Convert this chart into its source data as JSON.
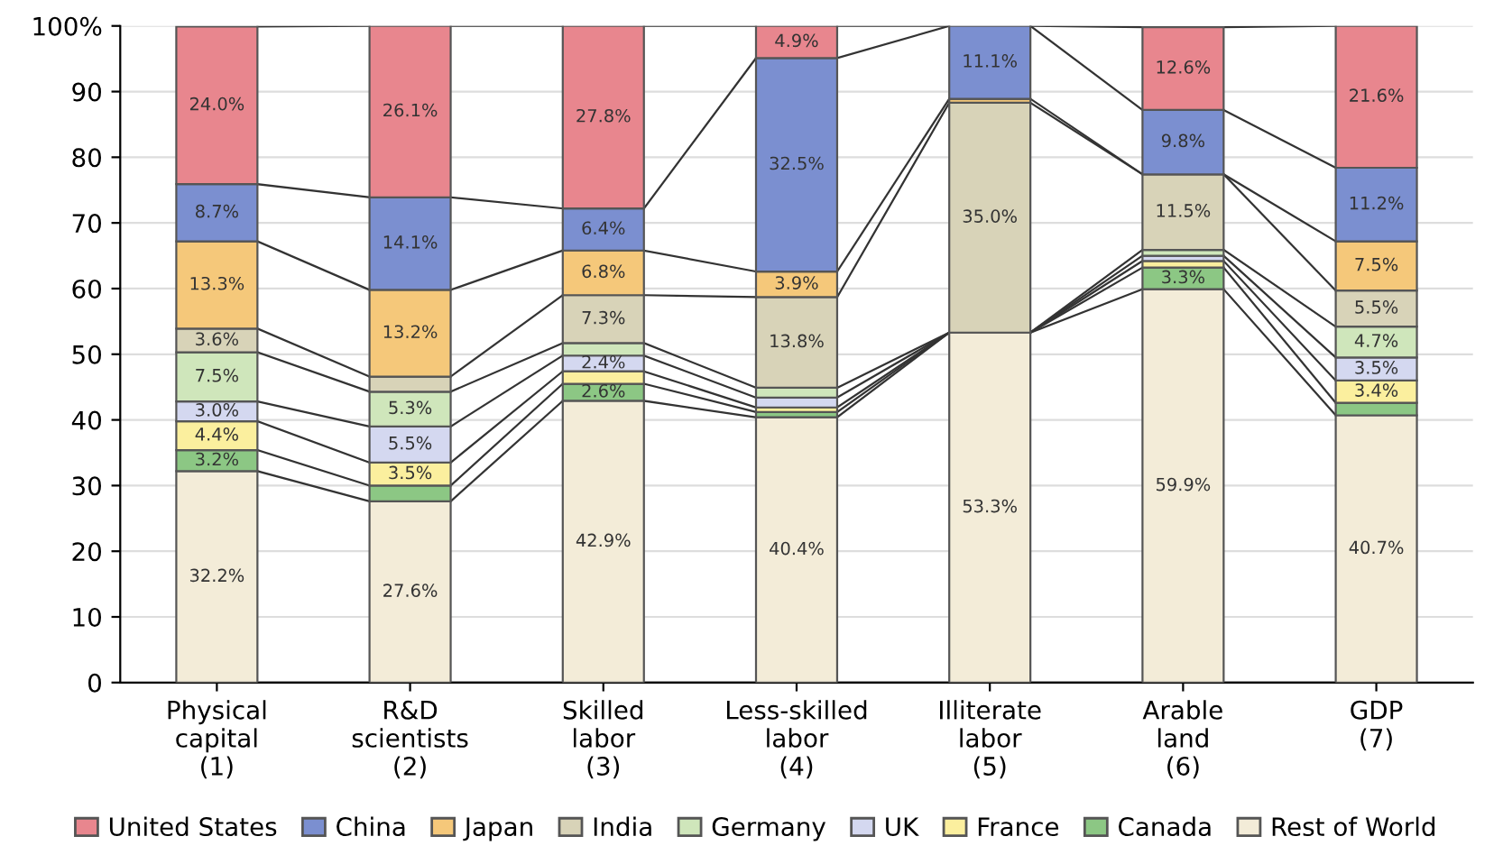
{
  "chart_data": {
    "type": "bar",
    "stacked": true,
    "categories": [
      "Physical\ncapital\n(1)",
      "R&D\nscientists\n(2)",
      "Skilled\nlabor\n(3)",
      "Less-skilled\nlabor\n(4)",
      "Illiterate\nlabor\n(5)",
      "Arable\nland\n(6)",
      "GDP\n(7)"
    ],
    "series": [
      {
        "name": "Rest of World",
        "color": "#f3ecd8",
        "values": [
          32.2,
          27.6,
          42.9,
          40.4,
          53.3,
          59.9,
          40.7
        ],
        "value_labels": [
          "32.2%",
          "27.6%",
          "42.9%",
          "40.4%",
          "53.3%",
          "59.9%",
          "40.7%"
        ]
      },
      {
        "name": "Canada",
        "color": "#8cc784",
        "values": [
          3.2,
          2.4,
          2.6,
          0.8,
          0,
          3.3,
          1.9
        ],
        "value_labels": [
          "3.2%",
          null,
          "2.6%",
          null,
          null,
          "3.3%",
          null
        ]
      },
      {
        "name": "France",
        "color": "#fbef9e",
        "values": [
          4.4,
          3.5,
          1.9,
          0.7,
          0,
          1.0,
          3.4
        ],
        "value_labels": [
          "4.4%",
          "3.5%",
          null,
          null,
          null,
          null,
          "3.4%"
        ]
      },
      {
        "name": "UK",
        "color": "#d4d8f0",
        "values": [
          3.0,
          5.5,
          2.4,
          1.5,
          0,
          0.8,
          3.5
        ],
        "value_labels": [
          "3.0%",
          "5.5%",
          "2.4%",
          null,
          null,
          null,
          "3.5%"
        ]
      },
      {
        "name": "Germany",
        "color": "#cfe6bb",
        "values": [
          7.5,
          5.3,
          1.9,
          1.5,
          0,
          0.9,
          4.7
        ],
        "value_labels": [
          "7.5%",
          "5.3%",
          null,
          null,
          null,
          null,
          "4.7%"
        ]
      },
      {
        "name": "India",
        "color": "#d8d3b8",
        "values": [
          3.6,
          2.3,
          7.3,
          13.8,
          35.0,
          11.5,
          5.5
        ],
        "value_labels": [
          "3.6%",
          null,
          "7.3%",
          "13.8%",
          "35.0%",
          "11.5%",
          "5.5%"
        ]
      },
      {
        "name": "Japan",
        "color": "#f5c87a",
        "values": [
          13.3,
          13.2,
          6.8,
          3.9,
          0.6,
          null,
          7.5
        ],
        "value_labels": [
          "13.3%",
          "13.2%",
          "6.8%",
          "3.9%",
          null,
          null,
          "7.5%"
        ]
      },
      {
        "name": "China",
        "color": "#7b8fd0",
        "values": [
          8.7,
          14.1,
          6.4,
          32.5,
          11.1,
          9.8,
          11.2
        ],
        "value_labels": [
          "8.7%",
          "14.1%",
          "6.4%",
          "32.5%",
          "11.1%",
          "9.8%",
          "11.2%"
        ]
      },
      {
        "name": "United States",
        "color": "#e8868e",
        "values": [
          24.0,
          26.1,
          27.8,
          4.9,
          0,
          12.6,
          21.6
        ],
        "value_labels": [
          "24.0%",
          "26.1%",
          "27.8%",
          "4.9%",
          null,
          "12.6%",
          "21.6%"
        ]
      }
    ],
    "ylim": [
      0,
      100
    ],
    "yticks": [
      0,
      10,
      20,
      30,
      40,
      50,
      60,
      70,
      80,
      90,
      {
        "value": 100,
        "label": "100%"
      }
    ],
    "grid": "y",
    "legend": "bottom"
  }
}
